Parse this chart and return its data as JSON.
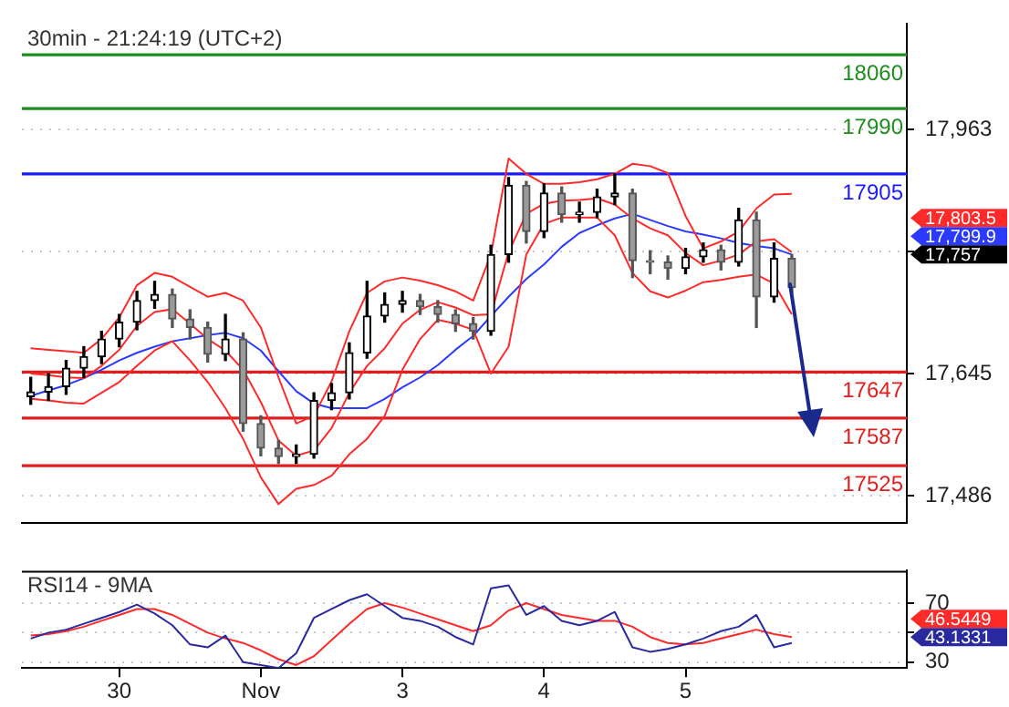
{
  "chart_data": [
    {
      "type": "candlestick",
      "title": "30min - 21:24:19 (UTC+2)",
      "categories": [
        null,
        null,
        null,
        null,
        null,
        null,
        null,
        null,
        null,
        null,
        null,
        null,
        null,
        null,
        null,
        null,
        null,
        null,
        null,
        null,
        null,
        null,
        null,
        null,
        null,
        null,
        null,
        null,
        null,
        null,
        null,
        null,
        null,
        null,
        null,
        null,
        null,
        null,
        null,
        null,
        null,
        null,
        null,
        null,
        null,
        null,
        null,
        null,
        null,
        null
      ],
      "ohlc": [
        [
          17615,
          17640,
          17605,
          17621
        ],
        [
          17621,
          17645,
          17610,
          17628
        ],
        [
          17628,
          17662,
          17618,
          17652
        ],
        [
          17652,
          17680,
          17640,
          17667
        ],
        [
          17667,
          17700,
          17658,
          17690
        ],
        [
          17690,
          17722,
          17680,
          17712
        ],
        [
          17712,
          17752,
          17702,
          17740
        ],
        [
          17740,
          17765,
          17730,
          17748
        ],
        [
          17748,
          17755,
          17705,
          17716
        ],
        [
          17716,
          17728,
          17690,
          17705
        ],
        [
          17705,
          17712,
          17660,
          17670
        ],
        [
          17670,
          17722,
          17662,
          17690
        ],
        [
          17690,
          17698,
          17570,
          17580
        ],
        [
          17580,
          17590,
          17538,
          17548
        ],
        [
          17548,
          17558,
          17528,
          17537
        ],
        [
          17537,
          17552,
          17528,
          17540
        ],
        [
          17540,
          17620,
          17535,
          17610
        ],
        [
          17610,
          17632,
          17598,
          17620
        ],
        [
          17620,
          17685,
          17612,
          17672
        ],
        [
          17672,
          17765,
          17665,
          17720
        ],
        [
          17720,
          17750,
          17712,
          17735
        ],
        [
          17735,
          17752,
          17725,
          17740
        ],
        [
          17740,
          17748,
          17722,
          17732
        ],
        [
          17732,
          17740,
          17712,
          17722
        ],
        [
          17722,
          17728,
          17700,
          17710
        ],
        [
          17710,
          17718,
          17690,
          17700
        ],
        [
          17700,
          17812,
          17695,
          17800
        ],
        [
          17800,
          17900,
          17790,
          17890
        ],
        [
          17890,
          17895,
          17815,
          17830
        ],
        [
          17830,
          17892,
          17822,
          17880
        ],
        [
          17880,
          17888,
          17842,
          17852
        ],
        [
          17852,
          17868,
          17842,
          17855
        ],
        [
          17855,
          17885,
          17848,
          17875
        ],
        [
          17875,
          17905,
          17865,
          17880
        ],
        [
          17880,
          17885,
          17770,
          17792
        ],
        [
          17792,
          17805,
          17775,
          17790
        ],
        [
          17790,
          17798,
          17768,
          17782
        ],
        [
          17782,
          17808,
          17775,
          17797
        ],
        [
          17797,
          17815,
          17790,
          17806
        ],
        [
          17806,
          17812,
          17780,
          17790
        ],
        [
          17790,
          17860,
          17785,
          17845
        ],
        [
          17845,
          17855,
          17705,
          17745
        ],
        [
          17745,
          17815,
          17738,
          17795
        ],
        [
          17795,
          17800,
          17750,
          17757
        ],
        null,
        null,
        null,
        null,
        null,
        null
      ],
      "series": [
        {
          "type": "line",
          "color": "#ff2a2a",
          "values": [
            17678,
            17676,
            17674,
            17672,
            17690,
            17718,
            17760,
            17776,
            17771,
            17758,
            17745,
            17750,
            17740,
            17705,
            17640,
            17580,
            17590,
            17635,
            17700,
            17750,
            17765,
            17770,
            17766,
            17760,
            17752,
            17740,
            17800,
            17925,
            17905,
            17892,
            17892,
            17894,
            17898,
            17905,
            17918,
            17915,
            17906,
            17850,
            17808,
            17817,
            17830,
            17860,
            17878,
            17879,
            null,
            null,
            null,
            null,
            null,
            null
          ]
        },
        {
          "type": "line",
          "color": "#ff2a2a",
          "values": [
            17645,
            17643,
            17640,
            17639,
            17655,
            17676,
            17707,
            17725,
            17729,
            17710,
            17690,
            17675,
            17650,
            17608,
            17558,
            17538,
            17545,
            17574,
            17620,
            17655,
            17678,
            17710,
            17728,
            17738,
            17731,
            17721,
            17722,
            17803,
            17853,
            17866,
            17870,
            17871,
            17873,
            17865,
            17847,
            17834,
            17825,
            17802,
            17786,
            17792,
            17800,
            17817,
            17820,
            17803,
            null,
            null,
            null,
            null,
            null,
            null
          ]
        },
        {
          "type": "line",
          "color": "#ff2a2a",
          "values": [
            17612,
            17610,
            17607,
            17606,
            17620,
            17634,
            17655,
            17675,
            17687,
            17662,
            17634,
            17600,
            17560,
            17510,
            17475,
            17495,
            17500,
            17512,
            17540,
            17560,
            17590,
            17650,
            17690,
            17715,
            17710,
            17702,
            17645,
            17680,
            17800,
            17840,
            17848,
            17848,
            17848,
            17825,
            17776,
            17752,
            17744,
            17753,
            17764,
            17767,
            17771,
            17774,
            17762,
            17722,
            null,
            null,
            null,
            null,
            null,
            null
          ]
        },
        {
          "type": "line",
          "color": "#2a3aff",
          "values": [
            17616,
            17623,
            17630,
            17639,
            17650,
            17662,
            17672,
            17680,
            17687,
            17691,
            17695,
            17698,
            17691,
            17675,
            17648,
            17622,
            17606,
            17600,
            17600,
            17600,
            17612,
            17627,
            17640,
            17656,
            17676,
            17694,
            17720,
            17745,
            17768,
            17787,
            17810,
            17828,
            17838,
            17847,
            17853,
            17845,
            17837,
            17830,
            17826,
            17821,
            17815,
            17811,
            17808,
            17800,
            null,
            null,
            null,
            null,
            null,
            null
          ]
        }
      ],
      "ylim": [
        17451,
        18100
      ],
      "yticks": [
        {
          "value": 17486,
          "label": "17,486"
        },
        {
          "value": 17645,
          "label": "17,645"
        },
        {
          "value": 17804,
          "label": null
        },
        {
          "value": 17963,
          "label": "17,963"
        }
      ],
      "grid": "y",
      "tick_labels": "y",
      "ref_lines": [
        {
          "axis": "y",
          "value": 18060,
          "label": "18060",
          "color": "#1e8c1e"
        },
        {
          "axis": "y",
          "value": 17990,
          "label": "17990",
          "color": "#1e8c1e"
        },
        {
          "axis": "y",
          "value": 17905,
          "label": "17905",
          "color": "#1a1aff"
        },
        {
          "axis": "y",
          "value": 17647,
          "label": "17647",
          "color": "#e01e1e"
        },
        {
          "axis": "y",
          "value": 17587,
          "label": "17587",
          "color": "#e01e1e"
        },
        {
          "axis": "y",
          "value": 17525,
          "label": "17525",
          "color": "#e01e1e"
        }
      ],
      "annotations": [
        "17,803.5",
        "17,799.9",
        "17,757"
      ]
    },
    {
      "type": "line",
      "title": "RSI14 - 9MA",
      "categories": [
        null,
        null,
        null,
        null,
        null,
        "30",
        null,
        null,
        null,
        null,
        null,
        null,
        null,
        "Nov",
        null,
        null,
        null,
        null,
        null,
        null,
        null,
        "3",
        null,
        null,
        null,
        null,
        null,
        null,
        null,
        "4",
        null,
        null,
        null,
        null,
        null,
        null,
        null,
        "5",
        null,
        null,
        null,
        null,
        null,
        null,
        null,
        null,
        null,
        null,
        null,
        null
      ],
      "series": [
        {
          "color": "#2a2aa0",
          "values": [
            46,
            50,
            52,
            56,
            60,
            64,
            69,
            63,
            55,
            42,
            40,
            48,
            30,
            28,
            26,
            36,
            60,
            66,
            72,
            76,
            68,
            60,
            58,
            54,
            47,
            42,
            80,
            82,
            62,
            68,
            58,
            55,
            58,
            64,
            40,
            37,
            39,
            42,
            46,
            51,
            54,
            62,
            40,
            43,
            null,
            null,
            null,
            null,
            null,
            null
          ]
        },
        {
          "color": "#ff2a2a",
          "values": [
            48,
            49,
            51,
            54,
            58,
            62,
            66,
            66,
            62,
            56,
            50,
            46,
            43,
            38,
            32,
            28,
            34,
            45,
            56,
            66,
            70,
            67,
            63,
            59,
            55,
            51,
            55,
            65,
            70,
            66,
            62,
            60,
            58,
            58,
            54,
            47,
            43,
            42,
            43,
            46,
            49,
            52,
            49,
            47,
            null,
            null,
            null,
            null,
            null,
            null
          ]
        }
      ],
      "ylim": [
        26,
        92
      ],
      "yticks": [
        30,
        {
          "value": 50,
          "label": null
        },
        70
      ],
      "grid": "y",
      "annotations": [
        "46.5449",
        "43.1331"
      ]
    }
  ]
}
